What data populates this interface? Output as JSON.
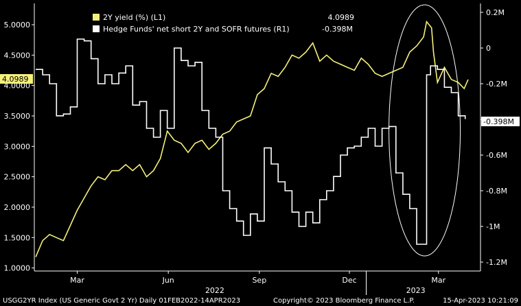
{
  "chart_data": {
    "type": "line",
    "legend": [
      {
        "label": "2Y yield (%) (L1)",
        "last": "4.0989",
        "color": "#f5f07a"
      },
      {
        "label": "Hedge Funds' net short 2Y and SOFR futures  (R1)",
        "last": "-0.398M",
        "color": "#ffffff"
      }
    ],
    "left_axis": {
      "ticks": [
        "5.0000",
        "4.5000",
        "4.0000",
        "3.5000",
        "3.0000",
        "2.5000",
        "2.0000",
        "1.5000",
        "1.0000"
      ],
      "ylim": [
        0.95,
        5.35
      ]
    },
    "right_axis": {
      "ticks": [
        "0.2M",
        "0",
        "-0.2M",
        "-0.4M",
        "-0.6M",
        "-0.8M",
        "-1M",
        "-1.2M"
      ],
      "ylim": [
        -1.25,
        0.25
      ]
    },
    "x_ticks": [
      "Mar",
      "Jun",
      "Sep",
      "Dec",
      "Mar"
    ],
    "x_years": [
      "2022",
      "2023"
    ],
    "last_value_labels": {
      "left": "4.0989",
      "right": "-0.398M"
    },
    "series": [
      {
        "name": "2Y yield (%)",
        "axis": "left",
        "x": [
          "2022-02-01",
          "2022-02-08",
          "2022-02-15",
          "2022-02-22",
          "2022-03-01",
          "2022-03-08",
          "2022-03-15",
          "2022-03-22",
          "2022-03-29",
          "2022-04-05",
          "2022-04-12",
          "2022-04-19",
          "2022-04-26",
          "2022-05-03",
          "2022-05-10",
          "2022-05-17",
          "2022-05-24",
          "2022-05-31",
          "2022-06-07",
          "2022-06-14",
          "2022-06-21",
          "2022-06-28",
          "2022-07-05",
          "2022-07-12",
          "2022-07-19",
          "2022-07-26",
          "2022-08-02",
          "2022-08-09",
          "2022-08-16",
          "2022-08-23",
          "2022-08-30",
          "2022-09-06",
          "2022-09-13",
          "2022-09-20",
          "2022-09-27",
          "2022-10-04",
          "2022-10-11",
          "2022-10-18",
          "2022-10-25",
          "2022-11-01",
          "2022-11-08",
          "2022-11-15",
          "2022-11-22",
          "2022-11-29",
          "2022-12-06",
          "2022-12-13",
          "2022-12-20",
          "2022-12-27",
          "2023-01-03",
          "2023-01-10",
          "2023-01-17",
          "2023-01-24",
          "2023-01-31",
          "2023-02-07",
          "2023-02-14",
          "2023-02-21",
          "2023-02-28",
          "2023-03-03",
          "2023-03-08",
          "2023-03-10",
          "2023-03-14",
          "2023-03-21",
          "2023-03-28",
          "2023-04-04",
          "2023-04-10",
          "2023-04-14"
        ],
        "values": [
          1.18,
          1.45,
          1.55,
          1.5,
          1.45,
          1.7,
          1.95,
          2.15,
          2.35,
          2.5,
          2.45,
          2.6,
          2.6,
          2.7,
          2.6,
          2.7,
          2.5,
          2.6,
          2.8,
          3.25,
          3.1,
          3.05,
          2.9,
          3.05,
          3.1,
          2.95,
          3.05,
          3.2,
          3.25,
          3.4,
          3.45,
          3.5,
          3.85,
          3.95,
          4.2,
          4.15,
          4.3,
          4.5,
          4.45,
          4.55,
          4.7,
          4.4,
          4.5,
          4.4,
          4.35,
          4.3,
          4.25,
          4.45,
          4.35,
          4.2,
          4.15,
          4.2,
          4.25,
          4.3,
          4.55,
          4.65,
          4.8,
          5.05,
          4.95,
          4.55,
          4.05,
          4.3,
          4.1,
          4.05,
          3.95,
          4.0989
        ]
      },
      {
        "name": "Hedge Funds' net short 2Y and SOFR futures",
        "axis": "right",
        "x": [
          "2022-02-01",
          "2022-02-08",
          "2022-02-15",
          "2022-02-22",
          "2022-03-01",
          "2022-03-08",
          "2022-03-15",
          "2022-03-22",
          "2022-03-29",
          "2022-04-05",
          "2022-04-12",
          "2022-04-19",
          "2022-04-26",
          "2022-05-03",
          "2022-05-10",
          "2022-05-17",
          "2022-05-24",
          "2022-05-31",
          "2022-06-07",
          "2022-06-14",
          "2022-06-21",
          "2022-06-28",
          "2022-07-05",
          "2022-07-12",
          "2022-07-19",
          "2022-07-26",
          "2022-08-02",
          "2022-08-09",
          "2022-08-16",
          "2022-08-23",
          "2022-08-30",
          "2022-09-06",
          "2022-09-13",
          "2022-09-20",
          "2022-09-27",
          "2022-10-04",
          "2022-10-11",
          "2022-10-18",
          "2022-10-25",
          "2022-11-01",
          "2022-11-08",
          "2022-11-15",
          "2022-11-22",
          "2022-11-29",
          "2022-12-06",
          "2022-12-13",
          "2022-12-20",
          "2022-12-27",
          "2023-01-03",
          "2023-01-10",
          "2023-01-17",
          "2023-01-24",
          "2023-01-31",
          "2023-02-07",
          "2023-02-14",
          "2023-02-21",
          "2023-02-28",
          "2023-03-03",
          "2023-03-07",
          "2023-03-14",
          "2023-03-21",
          "2023-03-28",
          "2023-04-04",
          "2023-04-11"
        ],
        "values": [
          -0.12,
          -0.15,
          -0.2,
          -0.38,
          -0.37,
          -0.33,
          0.05,
          0.04,
          -0.06,
          -0.2,
          -0.15,
          -0.2,
          -0.14,
          -0.1,
          -0.32,
          -0.3,
          -0.45,
          -0.5,
          -0.35,
          -0.45,
          0,
          -0.07,
          -0.1,
          -0.08,
          -0.35,
          -0.45,
          -0.5,
          -0.8,
          -0.9,
          -0.97,
          -1.05,
          -0.93,
          -0.97,
          -0.56,
          -0.65,
          -0.75,
          -0.8,
          -0.92,
          -1.0,
          -0.92,
          -0.98,
          -0.85,
          -0.8,
          -0.72,
          -0.6,
          -0.56,
          -0.55,
          -0.5,
          -0.45,
          -0.55,
          -0.45,
          -0.44,
          -0.7,
          -0.82,
          -0.9,
          -1.1,
          -1.1,
          -0.15,
          -0.1,
          -0.12,
          -0.22,
          -0.25,
          -0.38,
          -0.398
        ]
      }
    ],
    "grid": false,
    "legend_position": "top-left",
    "annotation": "ellipse around Feb–Mar 2023"
  },
  "footer": {
    "left": "USGG2YR Index (US Generic Govt 2 Yr)  Daily 01FEB2022-14APR2023",
    "center": "Copyright© 2023 Bloomberg Finance L.P.",
    "right": "15-Apr-2023 10:21:09"
  }
}
